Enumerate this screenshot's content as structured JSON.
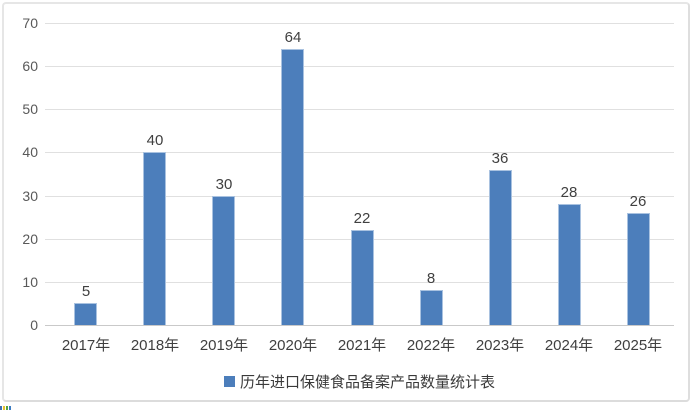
{
  "chart_data": {
    "type": "bar",
    "categories": [
      "2017年",
      "2018年",
      "2019年",
      "2020年",
      "2021年",
      "2022年",
      "2023年",
      "2024年",
      "2025年"
    ],
    "values": [
      5,
      40,
      30,
      64,
      22,
      8,
      36,
      28,
      26
    ],
    "title": "",
    "xlabel": "",
    "ylabel": "",
    "ylim": [
      0,
      70
    ],
    "ytick_interval": 10,
    "ytick_labels": [
      "0",
      "10",
      "20",
      "30",
      "40",
      "50",
      "60",
      "70"
    ],
    "grid": true,
    "legend": "历年进口保健食品备案产品数量统计表",
    "legend_position": "bottom-center",
    "bar_color": "#4c7ebb",
    "bar_border_color": "#a9c2e0",
    "gridline_color": "#e0e0e0",
    "axis_line_color": "#c9c9c9"
  },
  "corner_artifact": {
    "colors": [
      "#3e6fb5",
      "#e8c12f",
      "#57a33f",
      "#3c7cc3"
    ]
  }
}
